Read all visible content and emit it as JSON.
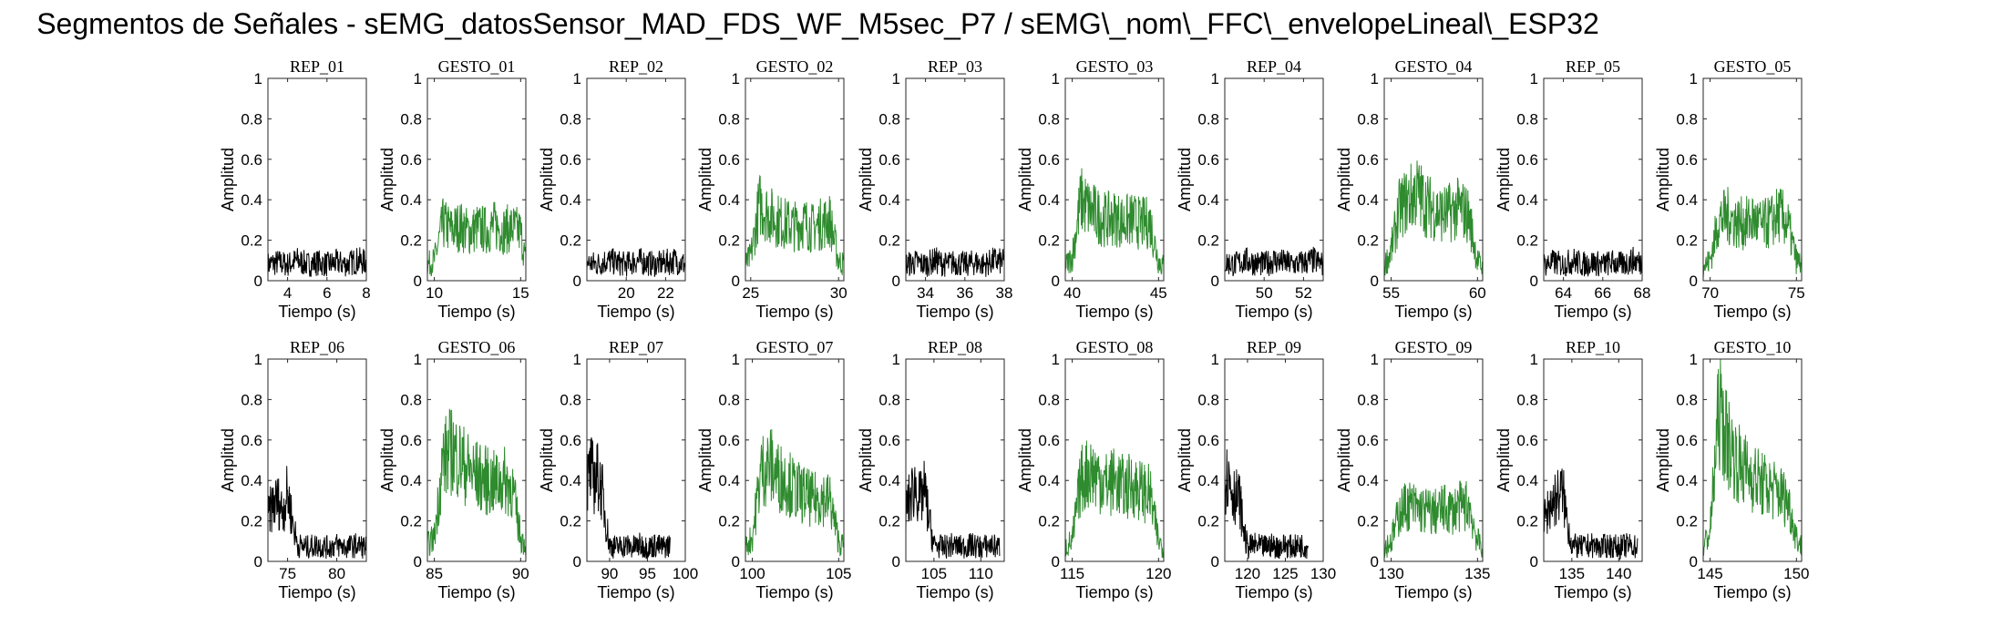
{
  "title": "Segmentos de Señales - sEMG_datosSensor_MAD_FDS_WF_M5sec_P7 / sEMG\\_nom\\_FFC\\_envelopeLineal\\_ESP32",
  "colors": {
    "rep": "#000000",
    "gesto": "#2e8b2e",
    "axes": "#262626"
  },
  "chart_data": [
    {
      "type": "line",
      "title": "REP_01",
      "xlabel": "Tiempo (s)",
      "ylabel": "Amplitud",
      "xlim": [
        3,
        8
      ],
      "ylim": [
        0,
        1
      ],
      "xticks": [
        4,
        6,
        8
      ],
      "yticks": [
        0,
        0.2,
        0.4,
        0.6,
        0.8,
        1
      ],
      "series": [
        {
          "color": "#000000",
          "x": [
            3,
            3.5,
            4,
            4.5,
            5,
            5.5,
            6,
            6.5,
            7,
            7.5,
            8
          ],
          "y": [
            0.08,
            0.09,
            0.08,
            0.1,
            0.08,
            0.09,
            0.08,
            0.09,
            0.08,
            0.1,
            0.09
          ]
        }
      ]
    },
    {
      "type": "line",
      "title": "GESTO_01",
      "xlabel": "Tiempo (s)",
      "ylabel": "Amplitud",
      "xlim": [
        9.6,
        15.3
      ],
      "ylim": [
        0,
        1
      ],
      "xticks": [
        10,
        15
      ],
      "yticks": [
        0,
        0.2,
        0.4,
        0.6,
        0.8,
        1
      ],
      "series": [
        {
          "color": "#2e8b2e",
          "x": [
            9.6,
            10,
            10.5,
            11,
            11.5,
            12,
            12.5,
            13,
            13.5,
            14,
            14.5,
            15,
            15.3
          ],
          "y": [
            0.08,
            0.1,
            0.28,
            0.25,
            0.27,
            0.24,
            0.26,
            0.25,
            0.27,
            0.25,
            0.26,
            0.24,
            0.09
          ]
        }
      ]
    },
    {
      "type": "line",
      "title": "REP_02",
      "xlabel": "Tiempo (s)",
      "ylabel": "Amplitud",
      "xlim": [
        18,
        23
      ],
      "ylim": [
        0,
        1
      ],
      "xticks": [
        20,
        22
      ],
      "yticks": [
        0,
        0.2,
        0.4,
        0.6,
        0.8,
        1
      ],
      "series": [
        {
          "color": "#000000",
          "x": [
            18,
            18.5,
            19,
            19.5,
            20,
            20.5,
            21,
            21.5,
            22,
            22.5,
            23
          ],
          "y": [
            0.09,
            0.08,
            0.1,
            0.09,
            0.08,
            0.1,
            0.09,
            0.08,
            0.09,
            0.1,
            0.08
          ]
        }
      ]
    },
    {
      "type": "line",
      "title": "GESTO_02",
      "xlabel": "Tiempo (s)",
      "ylabel": "Amplitud",
      "xlim": [
        24.7,
        30.3
      ],
      "ylim": [
        0,
        1
      ],
      "xticks": [
        25,
        30
      ],
      "yticks": [
        0,
        0.2,
        0.4,
        0.6,
        0.8,
        1
      ],
      "series": [
        {
          "color": "#2e8b2e",
          "x": [
            24.7,
            25,
            25.5,
            26,
            26.5,
            27,
            27.5,
            28,
            28.5,
            29,
            29.5,
            30,
            30.3
          ],
          "y": [
            0.08,
            0.12,
            0.38,
            0.33,
            0.3,
            0.28,
            0.27,
            0.29,
            0.26,
            0.28,
            0.3,
            0.1,
            0.08
          ]
        }
      ]
    },
    {
      "type": "line",
      "title": "REP_03",
      "xlabel": "Tiempo (s)",
      "ylabel": "Amplitud",
      "xlim": [
        33,
        38
      ],
      "ylim": [
        0,
        1
      ],
      "xticks": [
        34,
        36,
        38
      ],
      "yticks": [
        0,
        0.2,
        0.4,
        0.6,
        0.8,
        1
      ],
      "series": [
        {
          "color": "#000000",
          "x": [
            33,
            33.5,
            34,
            34.5,
            35,
            35.5,
            36,
            36.5,
            37,
            37.5,
            38
          ],
          "y": [
            0.08,
            0.09,
            0.08,
            0.1,
            0.08,
            0.09,
            0.08,
            0.09,
            0.08,
            0.1,
            0.09
          ]
        }
      ]
    },
    {
      "type": "line",
      "title": "GESTO_03",
      "xlabel": "Tiempo (s)",
      "ylabel": "Amplitud",
      "xlim": [
        39.6,
        45.3
      ],
      "ylim": [
        0,
        1
      ],
      "xticks": [
        40,
        45
      ],
      "yticks": [
        0,
        0.2,
        0.4,
        0.6,
        0.8,
        1
      ],
      "series": [
        {
          "color": "#2e8b2e",
          "x": [
            39.6,
            40,
            40.5,
            41,
            41.5,
            42,
            42.5,
            43,
            43.5,
            44,
            44.5,
            45,
            45.3
          ],
          "y": [
            0.07,
            0.12,
            0.4,
            0.35,
            0.32,
            0.3,
            0.31,
            0.29,
            0.3,
            0.28,
            0.29,
            0.1,
            0.07
          ]
        }
      ]
    },
    {
      "type": "line",
      "title": "REP_04",
      "xlabel": "Tiempo (s)",
      "ylabel": "Amplitud",
      "xlim": [
        48,
        53
      ],
      "ylim": [
        0,
        1
      ],
      "xticks": [
        50,
        52
      ],
      "yticks": [
        0,
        0.2,
        0.4,
        0.6,
        0.8,
        1
      ],
      "series": [
        {
          "color": "#000000",
          "x": [
            48,
            48.5,
            49,
            49.5,
            50,
            50.5,
            51,
            51.5,
            52,
            52.5,
            53
          ],
          "y": [
            0.09,
            0.08,
            0.1,
            0.09,
            0.08,
            0.1,
            0.09,
            0.08,
            0.09,
            0.1,
            0.08
          ]
        }
      ]
    },
    {
      "type": "line",
      "title": "GESTO_04",
      "xlabel": "Tiempo (s)",
      "ylabel": "Amplitud",
      "xlim": [
        54.6,
        60.3
      ],
      "ylim": [
        0,
        1
      ],
      "xticks": [
        55,
        60
      ],
      "yticks": [
        0,
        0.2,
        0.4,
        0.6,
        0.8,
        1
      ],
      "series": [
        {
          "color": "#2e8b2e",
          "x": [
            54.6,
            55,
            55.5,
            56,
            56.5,
            57,
            57.5,
            58,
            58.5,
            59,
            59.5,
            60,
            60.3
          ],
          "y": [
            0.07,
            0.15,
            0.36,
            0.4,
            0.44,
            0.38,
            0.35,
            0.33,
            0.34,
            0.36,
            0.32,
            0.1,
            0.06
          ]
        }
      ]
    },
    {
      "type": "line",
      "title": "REP_05",
      "xlabel": "Tiempo (s)",
      "ylabel": "Amplitud",
      "xlim": [
        63,
        68
      ],
      "ylim": [
        0,
        1
      ],
      "xticks": [
        64,
        66,
        68
      ],
      "yticks": [
        0,
        0.2,
        0.4,
        0.6,
        0.8,
        1
      ],
      "series": [
        {
          "color": "#000000",
          "x": [
            63,
            63.5,
            64,
            64.5,
            65,
            65.5,
            66,
            66.5,
            67,
            67.5,
            68
          ],
          "y": [
            0.08,
            0.09,
            0.08,
            0.1,
            0.08,
            0.09,
            0.08,
            0.09,
            0.08,
            0.1,
            0.09
          ]
        }
      ]
    },
    {
      "type": "line",
      "title": "GESTO_05",
      "xlabel": "Tiempo (s)",
      "ylabel": "Amplitud",
      "xlim": [
        69.6,
        75.3
      ],
      "ylim": [
        0,
        1
      ],
      "xticks": [
        70,
        75
      ],
      "yticks": [
        0,
        0.2,
        0.4,
        0.6,
        0.8,
        1
      ],
      "series": [
        {
          "color": "#2e8b2e",
          "x": [
            69.6,
            70,
            70.5,
            71,
            71.5,
            72,
            72.5,
            73,
            73.5,
            74,
            74.5,
            75,
            75.3
          ],
          "y": [
            0.07,
            0.1,
            0.3,
            0.32,
            0.29,
            0.28,
            0.3,
            0.27,
            0.29,
            0.33,
            0.28,
            0.1,
            0.08
          ]
        }
      ]
    },
    {
      "type": "line",
      "title": "REP_06",
      "xlabel": "Tiempo (s)",
      "ylabel": "Amplitud",
      "xlim": [
        73,
        83
      ],
      "ylim": [
        0,
        1
      ],
      "xticks": [
        75,
        80
      ],
      "yticks": [
        0,
        0.2,
        0.4,
        0.6,
        0.8,
        1
      ],
      "series": [
        {
          "color": "#000000",
          "x": [
            73,
            73.5,
            74,
            74.5,
            75,
            75.5,
            76,
            77,
            78,
            79,
            80,
            81,
            82,
            83
          ],
          "y": [
            0.22,
            0.28,
            0.3,
            0.25,
            0.34,
            0.2,
            0.08,
            0.07,
            0.08,
            0.07,
            0.08,
            0.07,
            0.08,
            0.07
          ]
        }
      ]
    },
    {
      "type": "line",
      "title": "GESTO_06",
      "xlabel": "Tiempo (s)",
      "ylabel": "Amplitud",
      "xlim": [
        84.6,
        90.3
      ],
      "ylim": [
        0,
        1
      ],
      "xticks": [
        85,
        90
      ],
      "yticks": [
        0,
        0.2,
        0.4,
        0.6,
        0.8,
        1
      ],
      "series": [
        {
          "color": "#2e8b2e",
          "x": [
            84.6,
            85,
            85.5,
            86,
            86.5,
            87,
            87.5,
            88,
            88.5,
            89,
            89.5,
            90,
            90.3
          ],
          "y": [
            0.08,
            0.12,
            0.5,
            0.55,
            0.5,
            0.45,
            0.42,
            0.4,
            0.38,
            0.4,
            0.37,
            0.12,
            0.08
          ]
        }
      ]
    },
    {
      "type": "line",
      "title": "REP_07",
      "xlabel": "Tiempo (s)",
      "ylabel": "Amplitud",
      "xlim": [
        87,
        100
      ],
      "ylim": [
        0,
        1
      ],
      "xticks": [
        90,
        95,
        100
      ],
      "yticks": [
        0,
        0.2,
        0.4,
        0.6,
        0.8,
        1
      ],
      "series": [
        {
          "color": "#000000",
          "x": [
            87,
            87.5,
            88,
            88.5,
            89,
            89.5,
            90,
            91,
            92,
            93,
            94,
            95,
            96,
            97,
            98
          ],
          "y": [
            0.38,
            0.45,
            0.4,
            0.42,
            0.35,
            0.2,
            0.08,
            0.07,
            0.08,
            0.07,
            0.08,
            0.07,
            0.08,
            0.07,
            0.08
          ]
        }
      ]
    },
    {
      "type": "line",
      "title": "GESTO_07",
      "xlabel": "Tiempo (s)",
      "ylabel": "Amplitud",
      "xlim": [
        99.6,
        105.3
      ],
      "ylim": [
        0,
        1
      ],
      "xticks": [
        100,
        105
      ],
      "yticks": [
        0,
        0.2,
        0.4,
        0.6,
        0.8,
        1
      ],
      "series": [
        {
          "color": "#2e8b2e",
          "x": [
            99.6,
            100,
            100.5,
            101,
            101.5,
            102,
            102.5,
            103,
            103.5,
            104,
            104.5,
            105,
            105.3
          ],
          "y": [
            0.07,
            0.12,
            0.45,
            0.48,
            0.42,
            0.4,
            0.35,
            0.33,
            0.3,
            0.32,
            0.3,
            0.1,
            0.07
          ]
        }
      ]
    },
    {
      "type": "line",
      "title": "REP_08",
      "xlabel": "Tiempo (s)",
      "ylabel": "Amplitud",
      "xlim": [
        102,
        112.5
      ],
      "ylim": [
        0,
        1
      ],
      "xticks": [
        105,
        110
      ],
      "yticks": [
        0,
        0.2,
        0.4,
        0.6,
        0.8,
        1
      ],
      "series": [
        {
          "color": "#000000",
          "x": [
            102,
            102.5,
            103,
            103.5,
            104,
            104.5,
            105,
            106,
            107,
            108,
            109,
            110,
            111,
            112
          ],
          "y": [
            0.25,
            0.32,
            0.38,
            0.3,
            0.35,
            0.2,
            0.08,
            0.07,
            0.08,
            0.07,
            0.08,
            0.07,
            0.08,
            0.07
          ]
        }
      ]
    },
    {
      "type": "line",
      "title": "GESTO_08",
      "xlabel": "Tiempo (s)",
      "ylabel": "Amplitud",
      "xlim": [
        114.6,
        120.3
      ],
      "ylim": [
        0,
        1
      ],
      "xticks": [
        115,
        120
      ],
      "yticks": [
        0,
        0.2,
        0.4,
        0.6,
        0.8,
        1
      ],
      "series": [
        {
          "color": "#2e8b2e",
          "x": [
            114.6,
            115,
            115.5,
            116,
            116.5,
            117,
            117.5,
            118,
            118.5,
            119,
            119.5,
            120,
            120.3
          ],
          "y": [
            0.07,
            0.1,
            0.4,
            0.45,
            0.42,
            0.38,
            0.4,
            0.36,
            0.38,
            0.35,
            0.33,
            0.1,
            0.07
          ]
        }
      ]
    },
    {
      "type": "line",
      "title": "REP_09",
      "xlabel": "Tiempo (s)",
      "ylabel": "Amplitud",
      "xlim": [
        117,
        130
      ],
      "ylim": [
        0,
        1
      ],
      "xticks": [
        120,
        125,
        130
      ],
      "yticks": [
        0,
        0.2,
        0.4,
        0.6,
        0.8,
        1
      ],
      "series": [
        {
          "color": "#000000",
          "x": [
            117,
            117.5,
            118,
            118.5,
            119,
            119.5,
            120,
            121,
            122,
            123,
            124,
            125,
            126,
            127,
            128
          ],
          "y": [
            0.4,
            0.42,
            0.35,
            0.32,
            0.3,
            0.15,
            0.07,
            0.08,
            0.07,
            0.08,
            0.07,
            0.08,
            0.07,
            0.08,
            0.07
          ]
        }
      ]
    },
    {
      "type": "line",
      "title": "GESTO_09",
      "xlabel": "Tiempo (s)",
      "ylabel": "Amplitud",
      "xlim": [
        129.6,
        135.3
      ],
      "ylim": [
        0,
        1
      ],
      "xticks": [
        130,
        135
      ],
      "yticks": [
        0,
        0.2,
        0.4,
        0.6,
        0.8,
        1
      ],
      "series": [
        {
          "color": "#2e8b2e",
          "x": [
            129.6,
            130,
            130.5,
            131,
            131.5,
            132,
            132.5,
            133,
            133.5,
            134,
            134.5,
            135,
            135.3
          ],
          "y": [
            0.07,
            0.1,
            0.25,
            0.28,
            0.26,
            0.25,
            0.24,
            0.26,
            0.25,
            0.27,
            0.28,
            0.1,
            0.07
          ]
        }
      ]
    },
    {
      "type": "line",
      "title": "REP_10",
      "xlabel": "Tiempo (s)",
      "ylabel": "Amplitud",
      "xlim": [
        132,
        142.5
      ],
      "ylim": [
        0,
        1
      ],
      "xticks": [
        135,
        140
      ],
      "yticks": [
        0,
        0.2,
        0.4,
        0.6,
        0.8,
        1
      ],
      "series": [
        {
          "color": "#000000",
          "x": [
            132,
            132.5,
            133,
            133.5,
            134,
            134.5,
            135,
            136,
            137,
            138,
            139,
            140,
            141,
            142
          ],
          "y": [
            0.2,
            0.26,
            0.3,
            0.32,
            0.35,
            0.2,
            0.08,
            0.07,
            0.08,
            0.07,
            0.08,
            0.07,
            0.08,
            0.07
          ]
        }
      ]
    },
    {
      "type": "line",
      "title": "GESTO_10",
      "xlabel": "Tiempo (s)",
      "ylabel": "Amplitud",
      "xlim": [
        144.6,
        150.3
      ],
      "ylim": [
        0,
        1
      ],
      "xticks": [
        145,
        150
      ],
      "yticks": [
        0,
        0.2,
        0.4,
        0.6,
        0.8,
        1
      ],
      "series": [
        {
          "color": "#2e8b2e",
          "x": [
            144.6,
            145,
            145.5,
            146,
            146.5,
            147,
            147.5,
            148,
            148.5,
            149,
            149.5,
            150,
            150.3
          ],
          "y": [
            0.07,
            0.15,
            0.75,
            0.6,
            0.5,
            0.45,
            0.42,
            0.38,
            0.36,
            0.34,
            0.3,
            0.12,
            0.07
          ]
        }
      ]
    }
  ]
}
